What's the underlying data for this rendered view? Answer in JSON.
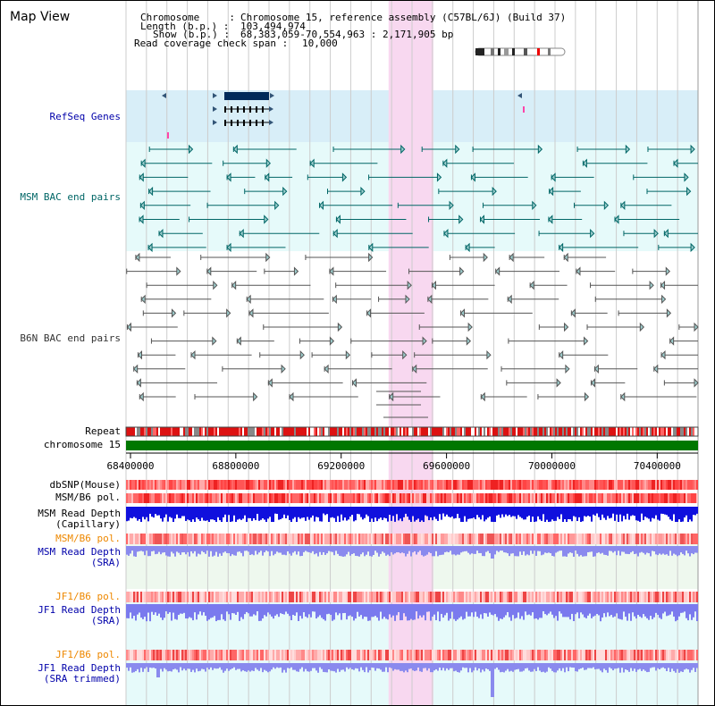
{
  "window": {
    "title": "Map View"
  },
  "info": {
    "chromosome_key": "Chromosome     :",
    "chromosome_val": "Chromosome 15, reference assembly (C57BL/6J) (Build 37)",
    "length_key": "Length (b.p.) :",
    "length_val": "103,494,974",
    "show_key": "Show (b.p.) :",
    "show_val": "68,383,059-70,554,963 : 2,171,905 bp",
    "coverage_key": "Read coverage check span :",
    "coverage_val": "10,000"
  },
  "tracks": {
    "refseq": {
      "label": "RefSeq Genes",
      "color": "#0000aa"
    },
    "msm_bac": {
      "label": "MSM BAC end pairs",
      "color": "#006666"
    },
    "b6n_bac": {
      "label": "B6N BAC end pairs",
      "color": "#333333"
    },
    "repeat": {
      "label": "Repeat"
    },
    "chrom": {
      "label": "chromosome 15"
    },
    "dbsnp": {
      "label": "dbSNP(Mouse)"
    },
    "msm_b6_pol_1": {
      "label": "MSM/B6 pol."
    },
    "msm_read_depth_cap": {
      "label": "MSM Read Depth",
      "sub": "(Capillary)"
    },
    "msm_b6_pol_2": {
      "label": "MSM/B6 pol.",
      "color": "#ee8800"
    },
    "msm_read_depth_sra": {
      "label": "MSM Read Depth",
      "sub": "(SRA)",
      "color": "#0000aa"
    },
    "jf1_b6_pol_1": {
      "label": "JF1/B6 pol.",
      "color": "#ee8800"
    },
    "jf1_read_depth_sra": {
      "label": "JF1 Read Depth",
      "sub": "(SRA)",
      "color": "#0000aa"
    },
    "jf1_b6_pol_2": {
      "label": "JF1/B6 pol.",
      "color": "#ee8800"
    },
    "jf1_read_depth_trim": {
      "label": "JF1 Read Depth",
      "sub": "(SRA trimmed)",
      "color": "#0000aa"
    }
  },
  "axis": {
    "ticks": [
      {
        "value": 68400000,
        "label": "68400000"
      },
      {
        "value": 68800000,
        "label": "68800000"
      },
      {
        "value": 69200000,
        "label": "69200000"
      },
      {
        "value": 69600000,
        "label": "69600000"
      },
      {
        "value": 70000000,
        "label": "70000000"
      },
      {
        "value": 70400000,
        "label": "70400000"
      }
    ],
    "start": 68383059,
    "end": 70554963
  },
  "highlight": {
    "start": 69380000,
    "end": 69550000,
    "color": "#f8d8f0"
  },
  "colors": {
    "refseq_bg": "#d8eef8",
    "msm_bg": "#e6fafa",
    "light_bg": "#eef8ee",
    "gene_fill": "#002a5a",
    "chrom_bar": "#007700",
    "grid": "#cccccc"
  }
}
